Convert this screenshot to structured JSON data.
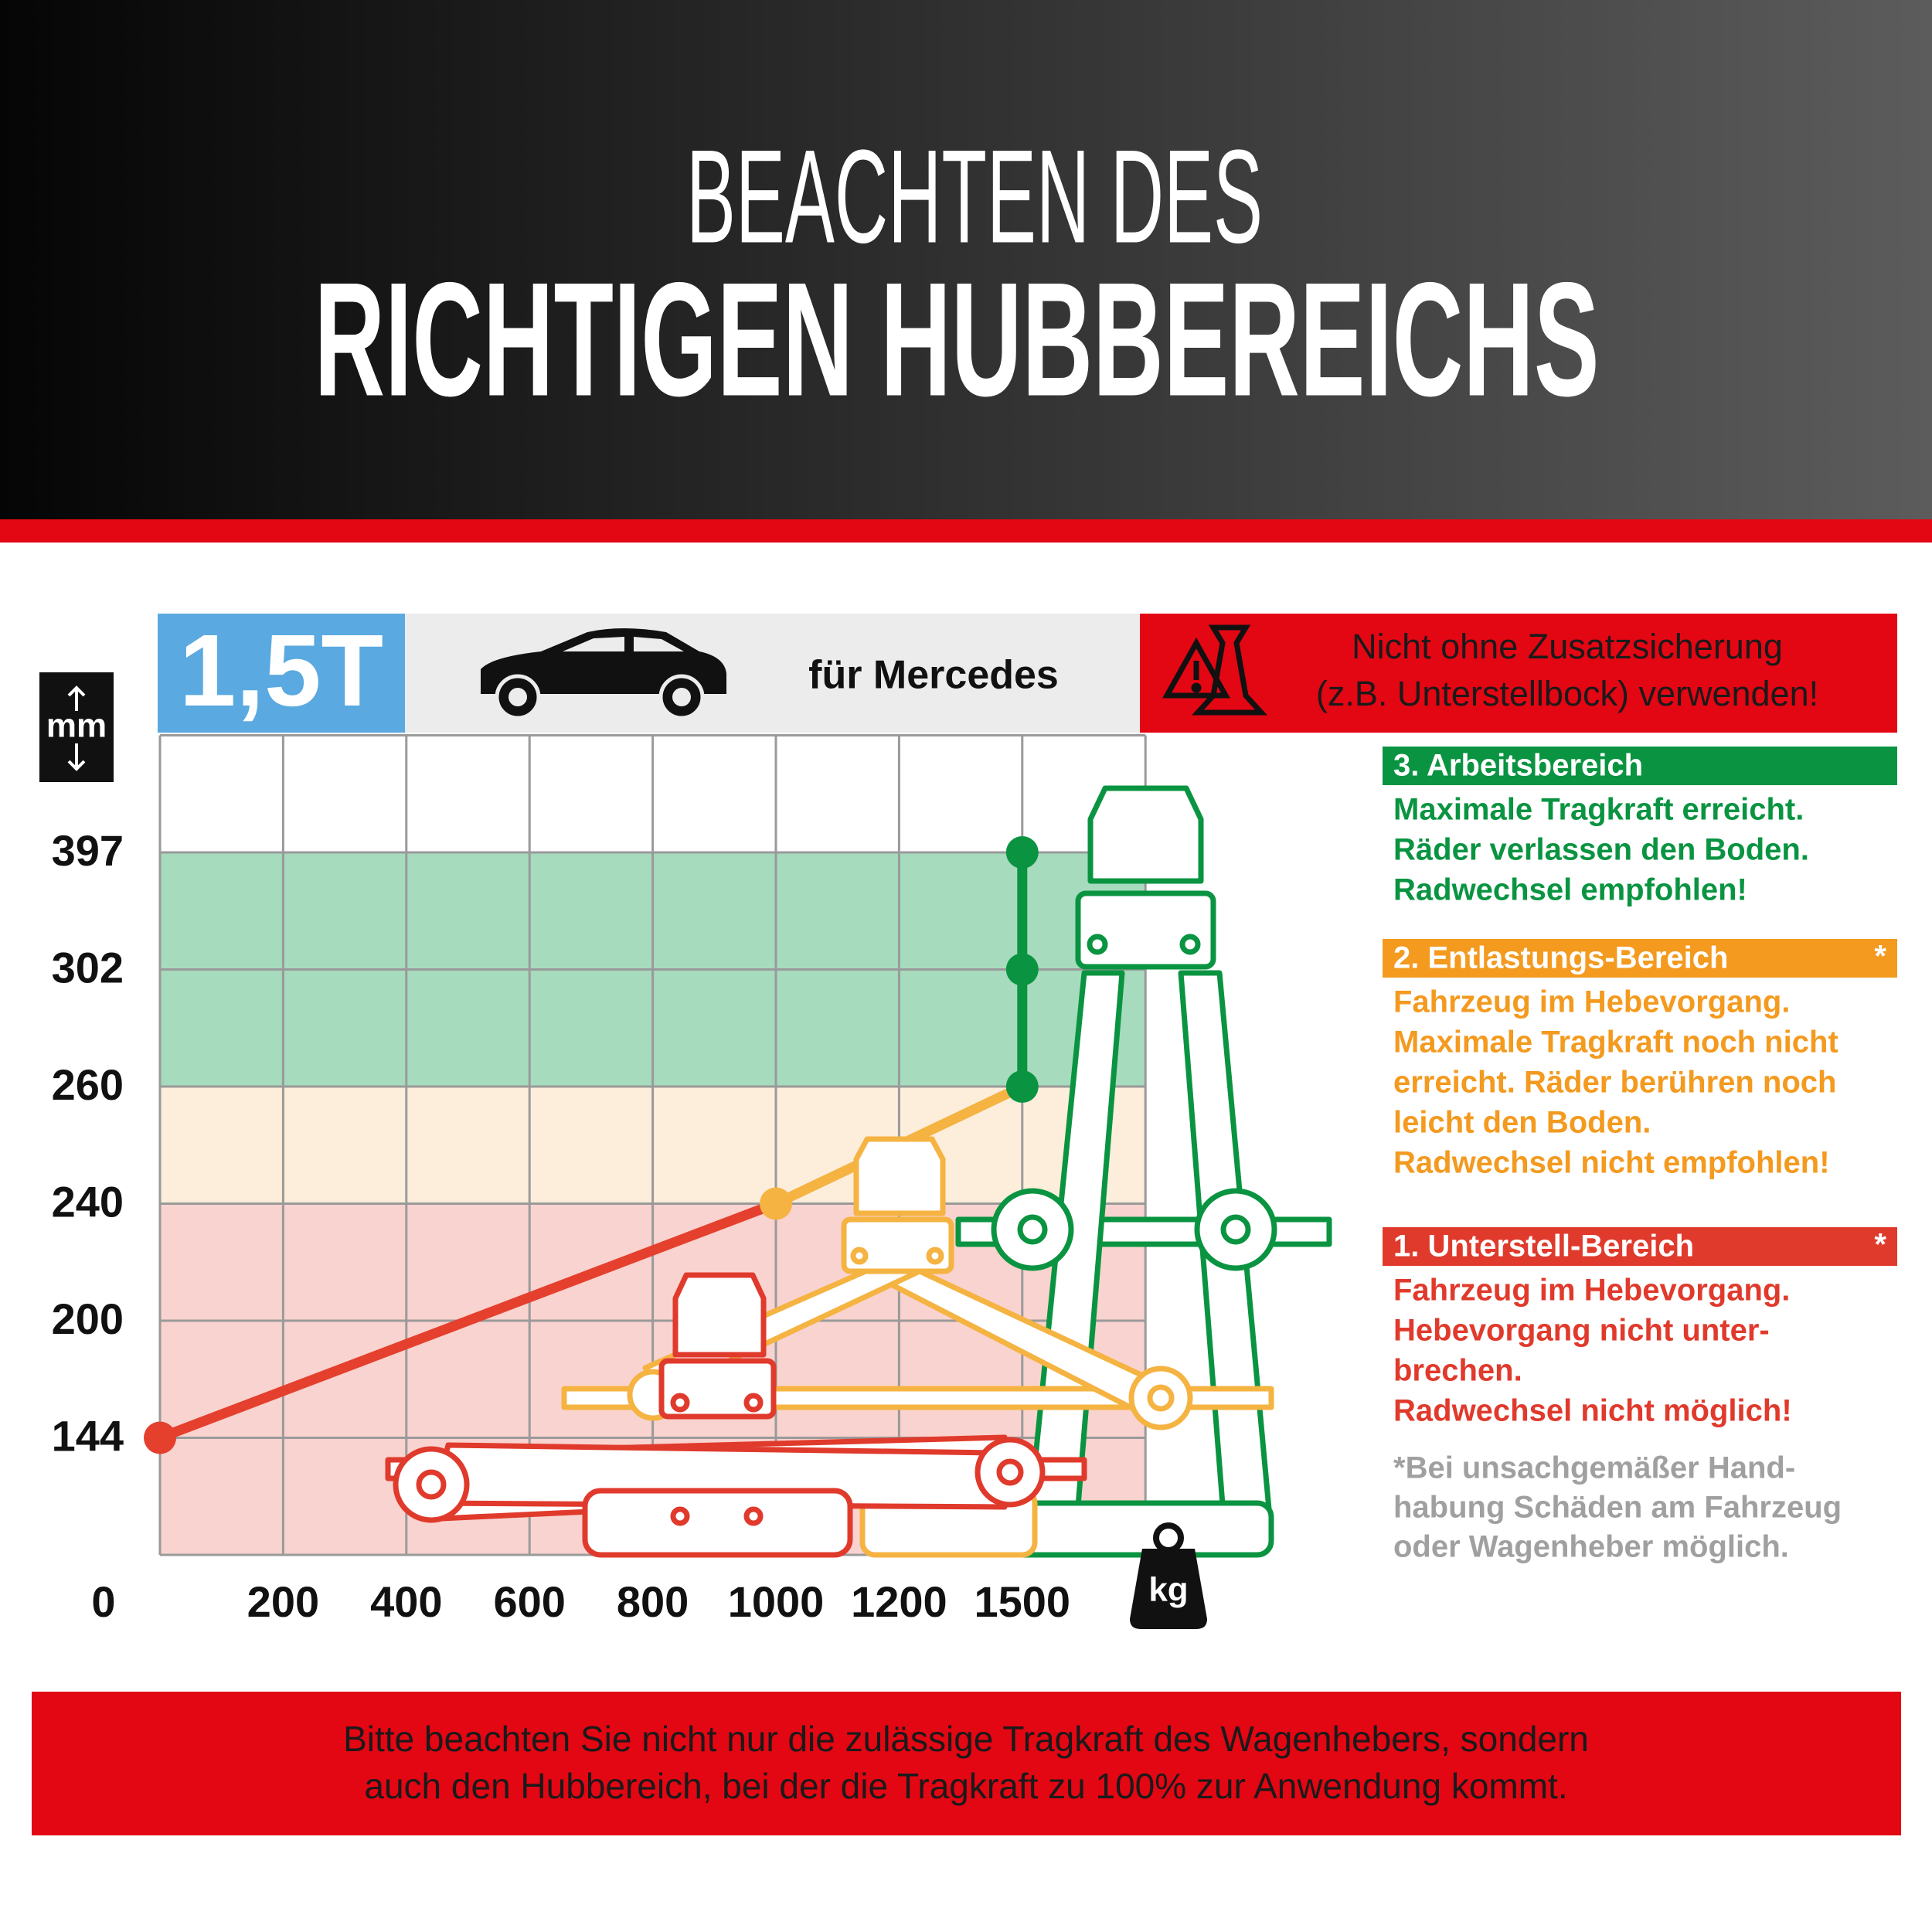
{
  "header": {
    "title_line1": "BEACHTEN DES",
    "title_line2": "RICHTIGEN HUBBEREICHS"
  },
  "top_bar": {
    "capacity": "1,5T",
    "vehicle": "für Mercedes",
    "warning": [
      "Nicht ohne Zusatzsicherung",
      "(z.B. Unterstellbock) verwenden!"
    ]
  },
  "chart_data": {
    "type": "line",
    "y_unit": "mm",
    "x_unit": "kg",
    "x": [
      0,
      1000,
      1500,
      1500,
      1500
    ],
    "values": [
      144,
      240,
      260,
      302,
      397
    ],
    "point_colors": [
      "#e53f2e",
      "#f5b342",
      "#0a9441",
      "#0a9441",
      "#0a9441"
    ],
    "xticks": [
      0,
      200,
      400,
      600,
      800,
      1000,
      1200,
      1500
    ],
    "yticks": [
      0,
      144,
      200,
      240,
      260,
      302,
      397
    ],
    "zones": [
      {
        "from": 260,
        "to": 397,
        "color": "#a6dbbe"
      },
      {
        "from": 240,
        "to": 260,
        "color": "#fdeedb"
      },
      {
        "from": 0,
        "to": 240,
        "color": "#f9d3cf"
      }
    ],
    "grid": true
  },
  "legend": [
    {
      "title": "3. Arbeitsbereich",
      "color": "#0a9441",
      "lines": [
        "Maximale Tragkraft erreicht.",
        "Räder verlassen den Boden.",
        "Radwechsel empfohlen!"
      ]
    },
    {
      "title": "2. Entlastungs-Bereich",
      "color": "#f39a1f",
      "marker": "*",
      "lines": [
        "Fahrzeug im Hebevorgang.",
        "Maximale Tragkraft noch nicht",
        "erreicht. Räder berühren noch",
        "leicht den Boden.",
        "Radwechsel  nicht empfohlen!"
      ]
    },
    {
      "title": "1. Unterstell-Bereich",
      "color": "#e03a2c",
      "marker": "*",
      "lines": [
        "Fahrzeug im Hebevorgang.",
        "Hebevorgang nicht unter-",
        "brechen.",
        "Radwechsel nicht möglich!"
      ]
    }
  ],
  "footnote": [
    "*Bei unsachgemäßer Hand-",
    "habung Schäden am Fahrzeug",
    "oder Wagenheber möglich."
  ],
  "footer": [
    "Bitte beachten Sie nicht nur die zulässige Tragkraft des Wagenhebers, sondern",
    "auch den Hubbereich, bei der die Tragkraft zu 100% zur Anwendung kommt."
  ]
}
